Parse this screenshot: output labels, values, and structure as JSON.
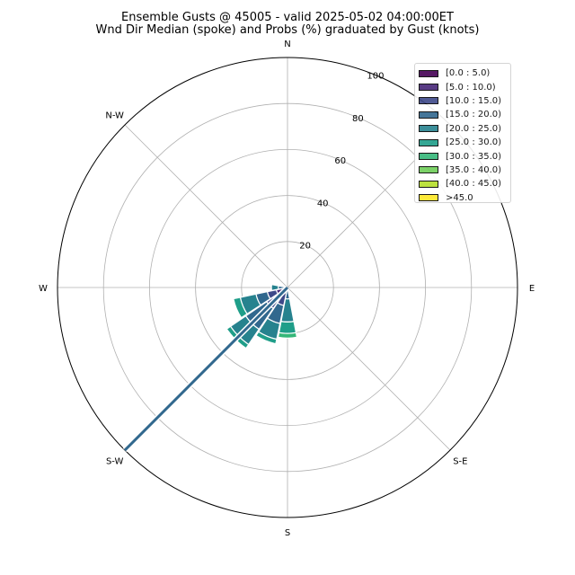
{
  "chart_data": {
    "type": "windrose",
    "title": "Ensemble Gusts @ 45005 - valid 2025-05-02 04:00:00ET",
    "subtitle": "Wnd Dir Median (spoke) and Probs (%) graduated by Gust (knots)",
    "direction_labels": [
      "N",
      "N-W",
      "W",
      "S-W",
      "S",
      "S-E",
      "E"
    ],
    "radial_ticks": [
      "20",
      "40",
      "60",
      "80",
      "100"
    ],
    "rmax": 100,
    "legend": [
      {
        "label": "[0.0 : 5.0)",
        "color": "#440154"
      },
      {
        "label": "[5.0 : 10.0)",
        "color": "#482878"
      },
      {
        "label": "[10.0 : 15.0)",
        "color": "#3e4989"
      },
      {
        "label": "[15.0 : 20.0)",
        "color": "#31688e"
      },
      {
        "label": "[20.0 : 25.0)",
        "color": "#26828e"
      },
      {
        "label": "[25.0 : 30.0)",
        "color": "#1f9e89"
      },
      {
        "label": "[30.0 : 35.0)",
        "color": "#35b779"
      },
      {
        "label": "[35.0 : 40.0)",
        "color": "#6ece58"
      },
      {
        "label": "[40.0 : 45.0)",
        "color": "#b5de2b"
      },
      {
        "label": ">45.0",
        "color": "#fde725"
      }
    ],
    "sectors": [
      {
        "direction": 180,
        "stack": [
          {
            "bin": 3,
            "to": 5
          },
          {
            "bin": 4,
            "to": 15
          },
          {
            "bin": 5,
            "to": 20
          },
          {
            "bin": 6,
            "to": 22
          }
        ]
      },
      {
        "direction": 202.5,
        "stack": [
          {
            "bin": 2,
            "to": 8
          },
          {
            "bin": 3,
            "to": 16
          },
          {
            "bin": 4,
            "to": 23
          },
          {
            "bin": 5,
            "to": 25
          }
        ]
      },
      {
        "direction": 225,
        "stack": [
          {
            "bin": 1,
            "to": 6
          },
          {
            "bin": 2,
            "to": 11
          },
          {
            "bin": 3,
            "to": 22
          },
          {
            "bin": 4,
            "to": 30
          },
          {
            "bin": 5,
            "to": 32
          }
        ]
      },
      {
        "direction": 247.5,
        "stack": [
          {
            "bin": 1,
            "to": 5
          },
          {
            "bin": 2,
            "to": 9
          },
          {
            "bin": 3,
            "to": 14
          },
          {
            "bin": 4,
            "to": 21
          },
          {
            "bin": 5,
            "to": 24
          }
        ]
      },
      {
        "direction": 270,
        "stack": [
          {
            "bin": 3,
            "to": 4
          },
          {
            "bin": 4,
            "to": 7
          }
        ]
      }
    ],
    "spoke": {
      "direction": 225,
      "value": 100,
      "color": "#31688e"
    }
  }
}
